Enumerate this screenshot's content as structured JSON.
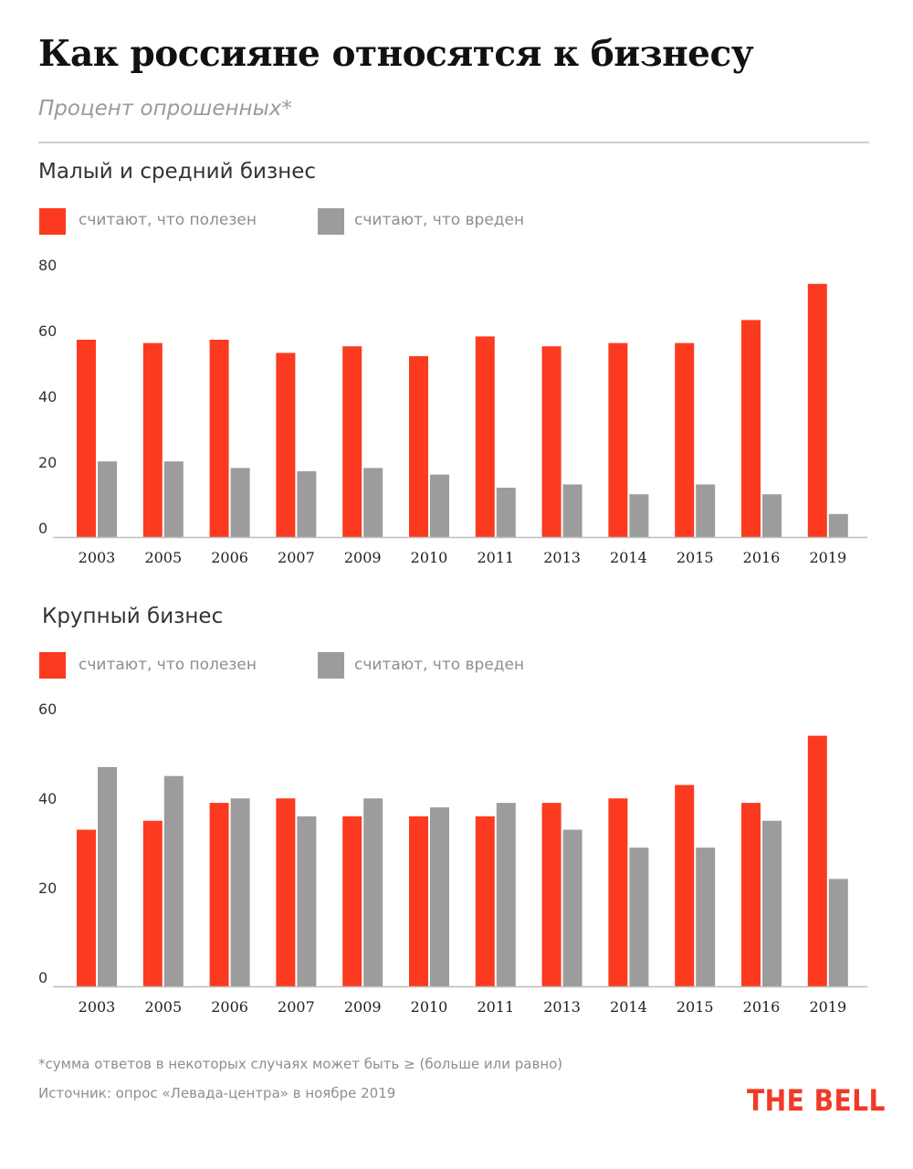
{
  "header": {
    "title": "Как россияне относятся к бизнесу",
    "subtitle": "Процент опрошенных*"
  },
  "colors": {
    "useful": "#fc3a1f",
    "harmful": "#9c9c9c",
    "axis": "#bdbdbd"
  },
  "legend": {
    "useful": "считают, что полезен",
    "harmful": "считают, что вреден"
  },
  "chart_data": [
    {
      "type": "bar",
      "title": "Малый и средний бизнес",
      "categories": [
        "2003",
        "2005",
        "2006",
        "2007",
        "2009",
        "2010",
        "2011",
        "2013",
        "2014",
        "2015",
        "2016",
        "2019"
      ],
      "series": [
        {
          "name": "считают, что полезен",
          "values": [
            60,
            59,
            60,
            56,
            58,
            55,
            61,
            58,
            59,
            59,
            66,
            77
          ]
        },
        {
          "name": "считают, что вреден",
          "values": [
            23,
            23,
            21,
            20,
            21,
            19,
            15,
            16,
            13,
            16,
            13,
            7
          ]
        }
      ],
      "yticks": [
        0,
        20,
        40,
        60,
        80
      ],
      "ylim": [
        0,
        80
      ],
      "grid": false,
      "legend_position": "top-left"
    },
    {
      "type": "bar",
      "title": "Крупный бизнес",
      "categories": [
        "2003",
        "2005",
        "2006",
        "2007",
        "2009",
        "2010",
        "2011",
        "2013",
        "2014",
        "2015",
        "2016",
        "2019"
      ],
      "series": [
        {
          "name": "считают, что полезен",
          "values": [
            35,
            37,
            41,
            42,
            38,
            38,
            38,
            41,
            42,
            45,
            41,
            56
          ]
        },
        {
          "name": "считают, что вреден",
          "values": [
            49,
            47,
            42,
            38,
            42,
            40,
            41,
            35,
            31,
            31,
            37,
            24
          ]
        }
      ],
      "yticks": [
        0,
        20,
        40,
        60
      ],
      "ylim": [
        0,
        60
      ],
      "grid": false,
      "legend_position": "top-left"
    }
  ],
  "footer": {
    "note": "*сумма ответов в некоторых случаях может быть ≥ (больше или равно)",
    "source": "Источник: опрос «Левада-центра» в ноябре 2019",
    "logo": "THE BELL"
  }
}
